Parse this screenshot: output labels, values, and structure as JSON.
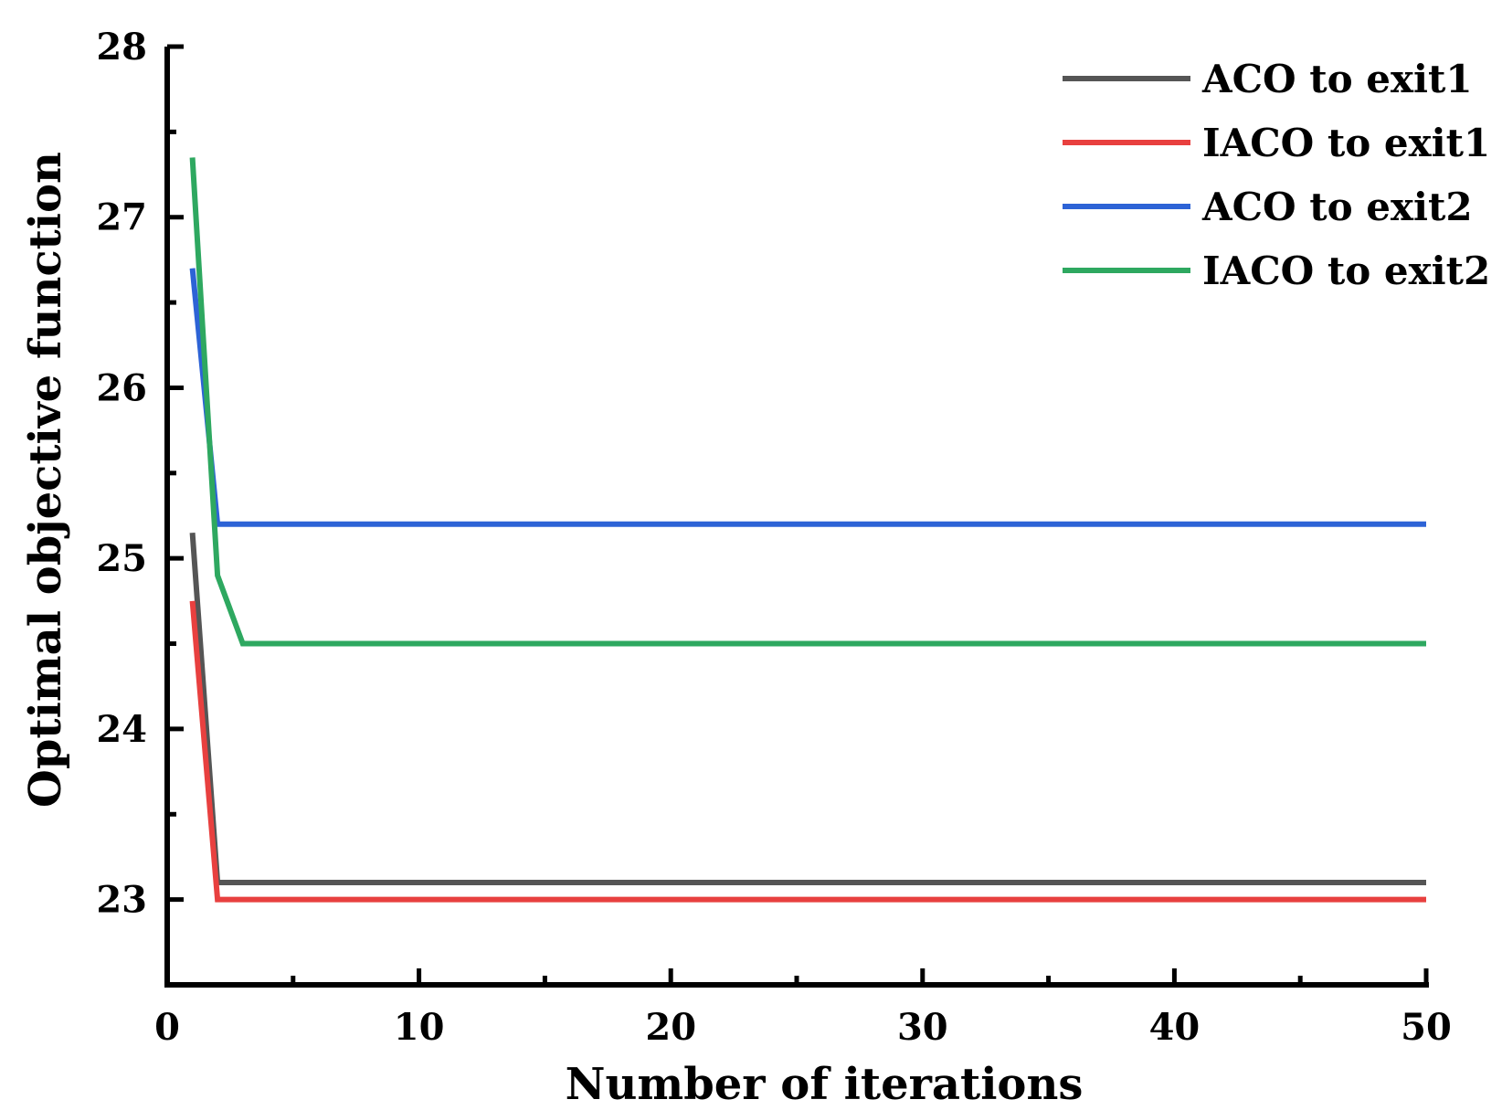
{
  "chart_data": {
    "type": "line",
    "xlabel": "Number of iterations",
    "ylabel": "Optimal objective function",
    "xlim": [
      0,
      50
    ],
    "ylim": [
      22.5,
      28
    ],
    "x_ticks": [
      0,
      10,
      20,
      30,
      40,
      50
    ],
    "y_ticks": [
      23,
      24,
      25,
      26,
      27,
      28
    ],
    "grid": false,
    "legend_position": "top-right",
    "series": [
      {
        "name": "ACO to exit1",
        "color": "#555555",
        "points": [
          [
            1,
            25.15
          ],
          [
            2,
            23.1
          ],
          [
            50,
            23.1
          ]
        ]
      },
      {
        "name": "IACO to exit1",
        "color": "#e8403f",
        "points": [
          [
            1,
            24.75
          ],
          [
            2,
            23.0
          ],
          [
            50,
            23.0
          ]
        ]
      },
      {
        "name": "ACO to exit2",
        "color": "#2d63d6",
        "points": [
          [
            1,
            26.7
          ],
          [
            2,
            25.2
          ],
          [
            50,
            25.2
          ]
        ]
      },
      {
        "name": "IACO to exit2",
        "color": "#2ea860",
        "points": [
          [
            1,
            27.35
          ],
          [
            2,
            24.9
          ],
          [
            3,
            24.5
          ],
          [
            50,
            24.5
          ]
        ]
      }
    ]
  }
}
